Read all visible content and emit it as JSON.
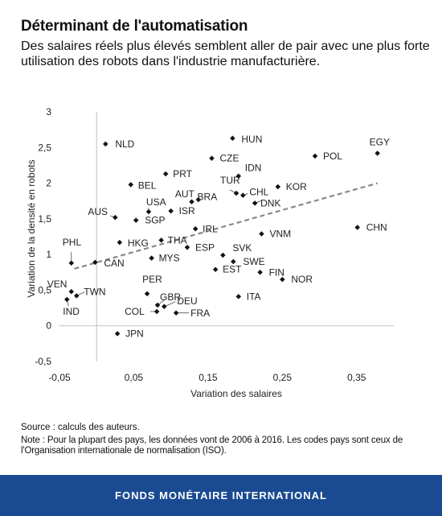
{
  "header": {
    "title": "Déterminant de l'automatisation",
    "subtitle": "Des salaires réels plus élevés semblent aller de pair avec une plus forte utilisation des robots dans l'industrie manufacturière."
  },
  "chart_data": {
    "type": "scatter",
    "xlabel": "Variation des salaires",
    "ylabel": "Variation de la densité en robots",
    "xlim": [
      -0.05,
      0.4
    ],
    "ylim": [
      -0.5,
      3
    ],
    "xticks": [
      -0.05,
      0.05,
      0.15,
      0.25,
      0.35
    ],
    "xtick_labels": [
      "-0,05",
      "0,05",
      "0,15",
      "0,25",
      "0,35"
    ],
    "yticks": [
      -0.5,
      0,
      0.5,
      1,
      1.5,
      2,
      2.5,
      3
    ],
    "ytick_labels": [
      "-0,5",
      "0",
      "0,5",
      "1",
      "1,5",
      "2",
      "2,5",
      "3"
    ],
    "grid": false,
    "trendline": {
      "style": "dashed",
      "color": "#888888",
      "x": [
        -0.03,
        0.378
      ],
      "y": [
        0.8,
        2.0
      ]
    },
    "points": [
      {
        "label": "HUN",
        "x": 0.183,
        "y": 2.63
      },
      {
        "label": "NLD",
        "x": 0.012,
        "y": 2.55
      },
      {
        "label": "EGY",
        "x": 0.378,
        "y": 2.42
      },
      {
        "label": "POL",
        "x": 0.294,
        "y": 2.38
      },
      {
        "label": "CZE",
        "x": 0.155,
        "y": 2.35
      },
      {
        "label": "PRT",
        "x": 0.093,
        "y": 2.13
      },
      {
        "label": "IDN",
        "x": 0.191,
        "y": 2.1
      },
      {
        "label": "BEL",
        "x": 0.046,
        "y": 1.98
      },
      {
        "label": "TUR",
        "x": 0.188,
        "y": 1.86
      },
      {
        "label": "KOR",
        "x": 0.244,
        "y": 1.95
      },
      {
        "label": "CHL",
        "x": 0.197,
        "y": 1.83
      },
      {
        "label": "DNK",
        "x": 0.213,
        "y": 1.72
      },
      {
        "label": "AUT",
        "x": 0.137,
        "y": 1.77
      },
      {
        "label": "BRA",
        "x": 0.128,
        "y": 1.74
      },
      {
        "label": "USA",
        "x": 0.07,
        "y": 1.6
      },
      {
        "label": "ISR",
        "x": 0.1,
        "y": 1.61
      },
      {
        "label": "AUS",
        "x": 0.025,
        "y": 1.52
      },
      {
        "label": "SGP",
        "x": 0.053,
        "y": 1.48
      },
      {
        "label": "IRL",
        "x": 0.133,
        "y": 1.36
      },
      {
        "label": "CHN",
        "x": 0.351,
        "y": 1.38
      },
      {
        "label": "VNM",
        "x": 0.222,
        "y": 1.29
      },
      {
        "label": "PHL",
        "x": -0.034,
        "y": 0.88
      },
      {
        "label": "HKG",
        "x": 0.031,
        "y": 1.17
      },
      {
        "label": "THA",
        "x": 0.087,
        "y": 1.2
      },
      {
        "label": "ESP",
        "x": 0.122,
        "y": 1.1
      },
      {
        "label": "SVK",
        "x": 0.17,
        "y": 0.99
      },
      {
        "label": "CAN",
        "x": -0.002,
        "y": 0.89
      },
      {
        "label": "MYS",
        "x": 0.074,
        "y": 0.95
      },
      {
        "label": "SWE",
        "x": 0.184,
        "y": 0.9
      },
      {
        "label": "EST",
        "x": 0.16,
        "y": 0.79
      },
      {
        "label": "FIN",
        "x": 0.22,
        "y": 0.75
      },
      {
        "label": "NOR",
        "x": 0.25,
        "y": 0.65
      },
      {
        "label": "VEN",
        "x": -0.034,
        "y": 0.48
      },
      {
        "label": "TWN",
        "x": -0.027,
        "y": 0.42
      },
      {
        "label": "PER",
        "x": 0.068,
        "y": 0.45
      },
      {
        "label": "ITA",
        "x": 0.191,
        "y": 0.41
      },
      {
        "label": "IND",
        "x": -0.04,
        "y": 0.37
      },
      {
        "label": "GBR",
        "x": 0.082,
        "y": 0.29
      },
      {
        "label": "DEU",
        "x": 0.091,
        "y": 0.27
      },
      {
        "label": "COL",
        "x": 0.081,
        "y": 0.2
      },
      {
        "label": "FRA",
        "x": 0.107,
        "y": 0.18
      },
      {
        "label": "JPN",
        "x": 0.028,
        "y": -0.11
      }
    ]
  },
  "footer": {
    "source": "Source : calculs des auteurs.",
    "note": "Note : Pour la plupart des pays, les données vont de 2006 à 2016. Les codes pays sont ceux de l'Organisation internationale de normalisation (ISO).",
    "brand": "FONDS MONÉTAIRE INTERNATIONAL"
  },
  "colors": {
    "brand_bar": "#1a4b92",
    "point": "#111111",
    "trendline": "#888888",
    "axis": "#bfbfbf"
  }
}
